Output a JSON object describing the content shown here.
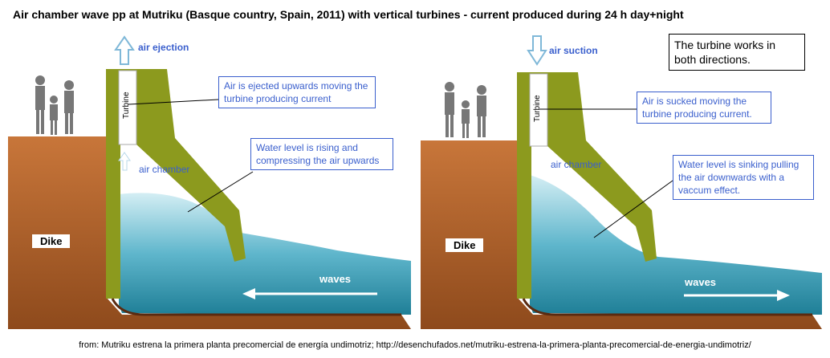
{
  "title": "Air chamber wave pp at Mutriku (Basque country, Spain, 2011) with vertical turbines - current produced during 24 h day+night",
  "note": "The turbine works in both directions.",
  "panels": [
    {
      "air_label": "air ejection",
      "turbine": "Turbine",
      "turbine_callout": "Air is ejected upwards moving the turbine producing current",
      "water_callout": "Water level is rising and compressing the air upwards",
      "chamber": "air chamber",
      "dike": "Dike",
      "waves": "waves"
    },
    {
      "air_label": "air suction",
      "turbine": "Turbine",
      "turbine_callout": "Air is sucked moving the turbine producing current.",
      "water_callout": "Water level is sinking pulling the air downwards with a vaccum effect.",
      "chamber": "air chamber",
      "dike": "Dike",
      "waves": "waves"
    }
  ],
  "source": "from: Mutriku estrena la primera planta precomercial de energía undimotriz; http://desenchufados.net/mutriku-estrena-la-primera-planta-precomercial-de-energia-undimotriz/"
}
